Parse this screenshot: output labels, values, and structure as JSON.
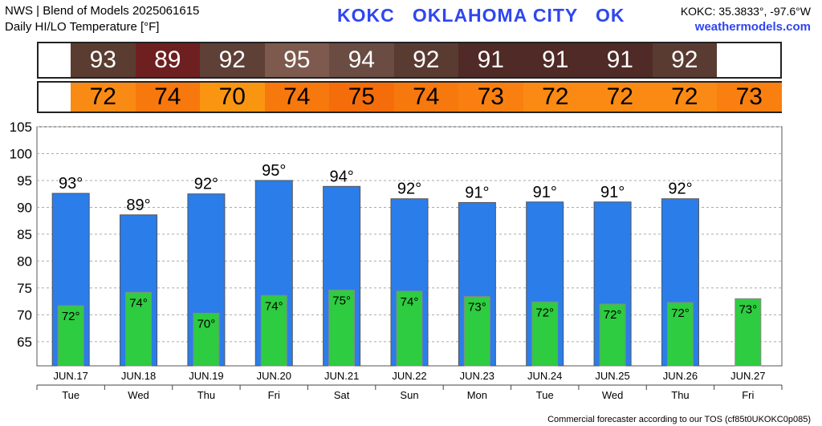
{
  "header": {
    "line1": "NWS | Blend of Models 2025061615",
    "line2": "Daily HI/LO Temperature [°F]",
    "station_title": "KOKC   OKLAHOMA CITY   OK",
    "coords": "KOKC: 35.3833°, -97.6°W",
    "site": "weathermodels.com"
  },
  "footer": "Commercial forecaster according to our TOS (cf85t0UKOKC0p085)",
  "colors": {
    "high_bar": "#2b7de9",
    "low_bar": "#2ecc40",
    "hi_cells": [
      "#5a3c30",
      "#6e1f1f",
      "#5e4036",
      "#7d5a4d",
      "#6a4c42",
      "#5a3b32",
      "#4f2a26",
      "#4f2a26",
      "#4f2a26",
      "#5a3b32"
    ],
    "lo_cells": [
      "#f98a14",
      "#f7780d",
      "#fa9512",
      "#f7780d",
      "#f46d0a",
      "#f7780d",
      "#f98010",
      "#fa8a14",
      "#fa8a14",
      "#fa8a14",
      "#f98010"
    ]
  },
  "chart_data": {
    "type": "bar",
    "x_dates": [
      "JUN.17",
      "JUN.18",
      "JUN.19",
      "JUN.20",
      "JUN.21",
      "JUN.22",
      "JUN.23",
      "JUN.24",
      "JUN.25",
      "JUN.26",
      "JUN.27"
    ],
    "x_days": [
      "Tue",
      "Wed",
      "Thu",
      "Fri",
      "Sat",
      "Sun",
      "Mon",
      "Tue",
      "Wed",
      "Thu",
      "Fri"
    ],
    "series": [
      {
        "values": [
          92.6,
          88.6,
          92.5,
          95.0,
          93.9,
          91.6,
          90.9,
          91.0,
          91.0,
          91.6
        ]
      },
      {
        "values": [
          71.7,
          74.2,
          70.3,
          73.6,
          74.6,
          74.4,
          73.4,
          72.4,
          72.0,
          72.3,
          73.0
        ]
      }
    ],
    "high_labels": [
      "93",
      "89",
      "92",
      "95",
      "94",
      "92",
      "91",
      "91",
      "91",
      "92"
    ],
    "low_labels": [
      "72",
      "74",
      "70",
      "74",
      "75",
      "74",
      "73",
      "72",
      "72",
      "72",
      "73"
    ],
    "yticks": [
      65,
      70,
      75,
      80,
      85,
      90,
      95,
      100,
      105
    ],
    "ylim": [
      60.5,
      105
    ],
    "degree_symbol": "°",
    "grid": true
  }
}
